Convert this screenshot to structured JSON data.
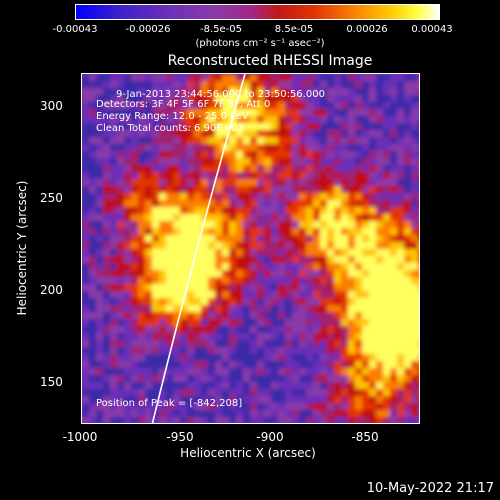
{
  "colorbar": {
    "ticks": [
      "-0.00043",
      "-0.00026",
      "-8.5e-05",
      "8.5e-05",
      "0.00026",
      "0.00043"
    ],
    "unit": "(photons cm⁻² s⁻¹ asec⁻²)"
  },
  "title": "Reconstructed RHESSI Image",
  "info": {
    "time": "9-Jan-2013 23:44:56.000 to 23:50:56.000",
    "detectors": "Detectors: 3F 4F 5F 6F 7F 8F, Att 0",
    "energy": "Energy Range: 12.0 - 25.0 keV",
    "clean": "Clean     Total counts: 6.90E+03",
    "peak": "Position of Peak = [-842,208]"
  },
  "axes": {
    "xlabel": "Heliocentric X (arcsec)",
    "ylabel": "Heliocentric Y (arcsec)",
    "xticks": [
      "-1000",
      "-950",
      "-900",
      "-850"
    ],
    "yticks": [
      "300",
      "250",
      "200",
      "150"
    ],
    "xlim": [
      -1005,
      -815
    ],
    "ylim": [
      125,
      320
    ]
  },
  "datestamp": "10-May-2022 21:17",
  "colors": {
    "background": "#000000",
    "foreground": "#ffffff"
  }
}
